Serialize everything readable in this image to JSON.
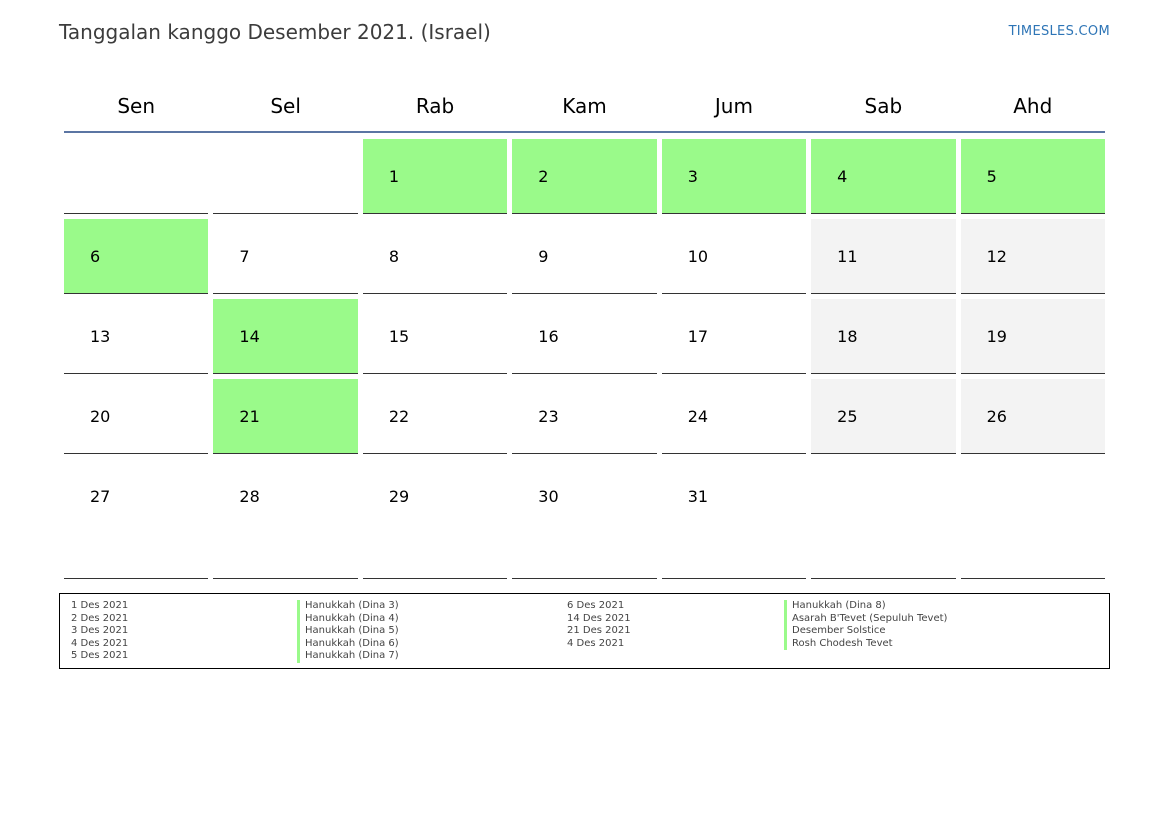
{
  "header": {
    "title": "Tanggalan kanggo Desember 2021. (Israel)",
    "brand": "TIMESLES.COM"
  },
  "calendar": {
    "weekdays": [
      "Sen",
      "Sel",
      "Rab",
      "Kam",
      "Jum",
      "Sab",
      "Ahd"
    ],
    "weeks": [
      [
        {
          "day": "",
          "type": "empty"
        },
        {
          "day": "",
          "type": "empty"
        },
        {
          "day": "1",
          "type": "holiday"
        },
        {
          "day": "2",
          "type": "holiday"
        },
        {
          "day": "3",
          "type": "holiday"
        },
        {
          "day": "4",
          "type": "holiday"
        },
        {
          "day": "5",
          "type": "holiday"
        }
      ],
      [
        {
          "day": "6",
          "type": "holiday"
        },
        {
          "day": "7",
          "type": "normal"
        },
        {
          "day": "8",
          "type": "normal"
        },
        {
          "day": "9",
          "type": "normal"
        },
        {
          "day": "10",
          "type": "normal"
        },
        {
          "day": "11",
          "type": "weekend"
        },
        {
          "day": "12",
          "type": "weekend"
        }
      ],
      [
        {
          "day": "13",
          "type": "normal"
        },
        {
          "day": "14",
          "type": "holiday"
        },
        {
          "day": "15",
          "type": "normal"
        },
        {
          "day": "16",
          "type": "normal"
        },
        {
          "day": "17",
          "type": "normal"
        },
        {
          "day": "18",
          "type": "weekend"
        },
        {
          "day": "19",
          "type": "weekend"
        }
      ],
      [
        {
          "day": "20",
          "type": "normal"
        },
        {
          "day": "21",
          "type": "holiday"
        },
        {
          "day": "22",
          "type": "normal"
        },
        {
          "day": "23",
          "type": "normal"
        },
        {
          "day": "24",
          "type": "normal"
        },
        {
          "day": "25",
          "type": "weekend"
        },
        {
          "day": "26",
          "type": "weekend"
        }
      ],
      [
        {
          "day": "27",
          "type": "normal"
        },
        {
          "day": "28",
          "type": "normal"
        },
        {
          "day": "29",
          "type": "normal"
        },
        {
          "day": "30",
          "type": "normal"
        },
        {
          "day": "31",
          "type": "normal"
        },
        {
          "day": "",
          "type": "empty"
        },
        {
          "day": "",
          "type": "empty"
        }
      ]
    ]
  },
  "legend": {
    "col1": [
      {
        "date": "1 Des 2021",
        "name": "Hanukkah (Dina 3)"
      },
      {
        "date": "2 Des 2021",
        "name": "Hanukkah (Dina 4)"
      },
      {
        "date": "3 Des 2021",
        "name": "Hanukkah (Dina 5)"
      },
      {
        "date": "4 Des 2021",
        "name": "Hanukkah (Dina 6)"
      },
      {
        "date": "5 Des 2021",
        "name": "Hanukkah (Dina 7)"
      }
    ],
    "col2": [
      {
        "date": "6 Des 2021",
        "name": "Hanukkah (Dina 8)"
      },
      {
        "date": "14 Des 2021",
        "name": "Asarah B'Tevet (Sepuluh Tevet)"
      },
      {
        "date": "21 Des 2021",
        "name": "Desember Solstice"
      },
      {
        "date": "4 Des 2021",
        "name": "Rosh Chodesh Tevet"
      }
    ]
  },
  "colors": {
    "holiday": "#9afa8a",
    "weekend": "#f3f3f3",
    "header_rule": "#5b75a3",
    "brand": "#2e75b6"
  }
}
